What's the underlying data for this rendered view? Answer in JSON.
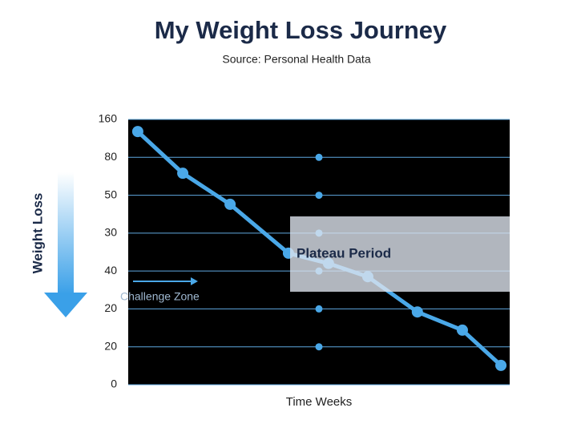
{
  "chart_data": {
    "type": "line",
    "title": "My Weight Loss Journey",
    "subtitle": "Source: Personal Health Data",
    "y_label": "Weight Loss",
    "x_label": "Time Weeks",
    "annotations": [
      "Plateau Period",
      "Challenge Zone"
    ],
    "xlim": [
      0,
      10
    ],
    "ylim": [
      0,
      7
    ],
    "yticks": [
      {
        "value": 0,
        "label": "0"
      },
      {
        "value": 1,
        "label": "20"
      },
      {
        "value": 2,
        "label": "20"
      },
      {
        "value": 3,
        "label": "40"
      },
      {
        "value": 4,
        "label": "30"
      },
      {
        "value": 5,
        "label": "50"
      },
      {
        "value": 6,
        "label": "80"
      },
      {
        "value": 7,
        "label": "160"
      }
    ],
    "grid": true,
    "x": [
      0.25,
      1.43,
      2.67,
      4.2,
      5.25,
      6.28,
      7.58,
      8.76,
      9.77
    ],
    "series": [
      {
        "color": "#4aa8e8",
        "values": [
          6.68,
          5.58,
          4.76,
          3.47,
          3.2,
          2.85,
          1.92,
          1.44,
          0.51
        ]
      }
    ]
  }
}
